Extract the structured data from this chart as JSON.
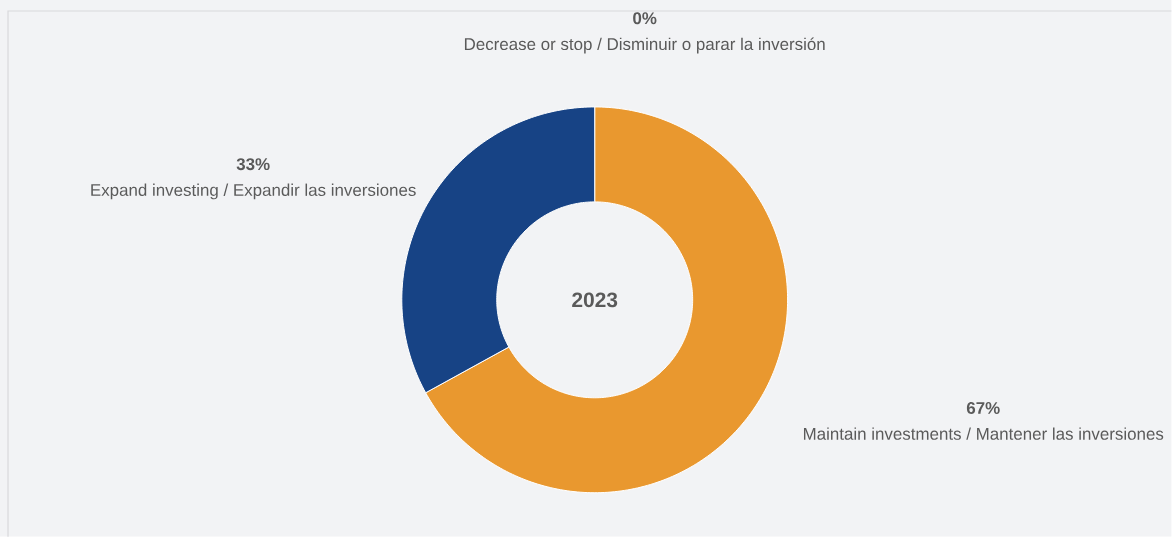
{
  "chart_data": {
    "type": "donut",
    "title": "2023",
    "categories": [
      "Decrease or stop / Disminuir o parar la inversión",
      "Maintain investments / Mantener las inversiones",
      "Expand investing / Expandir las inversiones"
    ],
    "values": [
      0,
      67,
      33
    ],
    "colors": [
      "#7f7f7f",
      "#e9982f",
      "#174385"
    ],
    "data_labels": true,
    "value_labels": [
      "0%",
      "67%",
      "33%"
    ]
  }
}
